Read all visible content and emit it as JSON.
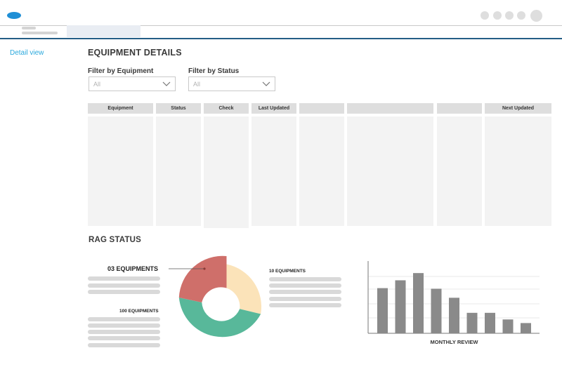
{
  "nav": {
    "detail_view": "Detail view"
  },
  "page": {
    "title": "EQUIPMENT DETAILS"
  },
  "filters": {
    "equipment": {
      "label": "Filter by Equipment",
      "value": "All"
    },
    "status": {
      "label": "Filter by Status",
      "value": "All"
    }
  },
  "table": {
    "columns": [
      "Equipment",
      "Status",
      "Check",
      "Last Updated",
      "",
      "",
      "",
      "Next Updated"
    ]
  },
  "rag": {
    "title": "RAG STATUS",
    "labels": {
      "red": "03 EQUIPMENTS",
      "amber": "10 EQUIPMENTS",
      "green": "100 EQUIPMENTS"
    }
  },
  "colors": {
    "accent": "#2aa8dc",
    "logo": "#1f8fd6",
    "red": "#cf6f6a",
    "amber": "#fbe3b9",
    "green": "#58b89a",
    "bar": "#8a8a8a"
  },
  "chart_data": {
    "type": "bar",
    "title": "",
    "xlabel": "MONTHLY REVIEW",
    "ylabel": "",
    "values": [
      7.5,
      8.8,
      10,
      7.4,
      5.9,
      3.4,
      3.4,
      2.3,
      1.7
    ],
    "ylim": [
      0,
      12
    ],
    "grid": true
  }
}
